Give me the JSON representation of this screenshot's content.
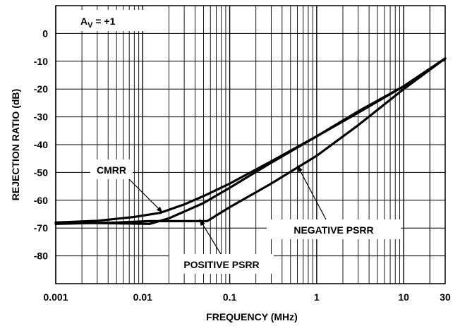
{
  "chart_data": {
    "type": "line",
    "title": "",
    "xlabel": "FREQUENCY (MHz)",
    "ylabel": "REJECTION RATIO (dB)",
    "x_scale": "log",
    "xlim": [
      0.001,
      30
    ],
    "ylim": [
      -90,
      10
    ],
    "grid": true,
    "x_ticks": [
      0.001,
      0.01,
      0.1,
      1,
      10,
      30
    ],
    "x_tick_labels": [
      "0.001",
      "0.01",
      "0.1",
      "1",
      "10",
      "30"
    ],
    "y_ticks": [
      0,
      -10,
      -20,
      -30,
      -40,
      -50,
      -60,
      -70,
      -80
    ],
    "y_tick_labels": [
      "0",
      "-10",
      "-20",
      "-30",
      "-40",
      "-50",
      "-60",
      "-70",
      "-80"
    ],
    "gain_label": {
      "main": "A",
      "sub": "V",
      "rest": " = +1"
    },
    "series": [
      {
        "name": "CMRR",
        "x": [
          0.001,
          0.003,
          0.008,
          0.016,
          0.03,
          0.05,
          0.1,
          0.3,
          1,
          3,
          10,
          30
        ],
        "y": [
          -68,
          -67.4,
          -66,
          -64.5,
          -61.5,
          -58.5,
          -54,
          -46,
          -37,
          -28.5,
          -19,
          -9
        ]
      },
      {
        "name": "POSITIVE PSRR",
        "x": [
          0.001,
          0.005,
          0.012,
          0.02,
          0.05,
          0.1,
          0.3,
          1,
          3,
          10,
          30
        ],
        "y": [
          -68,
          -68.3,
          -68.5,
          -66.5,
          -61,
          -55.5,
          -46.5,
          -37,
          -28,
          -19,
          -9
        ]
      },
      {
        "name": "NEGATIVE PSRR",
        "x": [
          0.001,
          0.005,
          0.012,
          0.03,
          0.055,
          0.1,
          0.3,
          1,
          3,
          10,
          30
        ],
        "y": [
          -68.5,
          -68,
          -67.5,
          -67.5,
          -67.5,
          -62.5,
          -54,
          -44,
          -33,
          -20,
          -9
        ]
      }
    ],
    "annotations": [
      {
        "text": "CMRR",
        "target_x": 0.017,
        "target_y": -64.5
      },
      {
        "text": "POSITIVE PSRR",
        "target_x": 0.045,
        "target_y": -66.8
      },
      {
        "text": "NEGATIVE PSRR",
        "target_x": 0.6,
        "target_y": -47.5
      }
    ]
  }
}
